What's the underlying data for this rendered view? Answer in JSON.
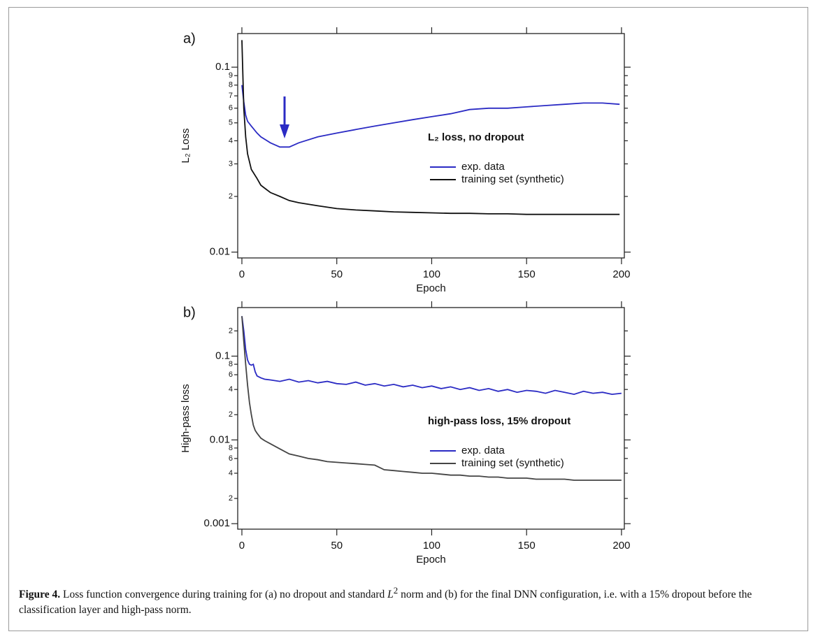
{
  "chart_data": [
    {
      "type": "line",
      "panel_label": "a)",
      "ylabel": "L₂ Loss",
      "xlabel": "Epoch",
      "annotation": "L₂ loss, no dropout",
      "ylog": true,
      "xlim": [
        -2.2,
        201.5
      ],
      "ylim": [
        0.0093,
        0.152
      ],
      "xticks": [
        0,
        50,
        100,
        150,
        200
      ],
      "yticks": [
        0.01,
        {
          "value": 0.02,
          "label": "2"
        },
        {
          "value": 0.03,
          "label": "3"
        },
        {
          "value": 0.04,
          "label": "4"
        },
        {
          "value": 0.05,
          "label": "5"
        },
        {
          "value": 0.06,
          "label": "6"
        },
        {
          "value": 0.07,
          "label": "7"
        },
        {
          "value": 0.08,
          "label": "8"
        },
        {
          "value": 0.09,
          "label": "9"
        },
        0.1
      ],
      "x": [
        0,
        1,
        2,
        3,
        5,
        8,
        10,
        15,
        20,
        25,
        30,
        40,
        50,
        60,
        70,
        80,
        90,
        100,
        110,
        120,
        130,
        140,
        150,
        160,
        170,
        180,
        190,
        199
      ],
      "series": [
        {
          "name": "exp. data",
          "color": "#2b2bc4",
          "values": [
            0.08,
            0.065,
            0.055,
            0.051,
            0.048,
            0.044,
            0.042,
            0.039,
            0.037,
            0.037,
            0.039,
            0.042,
            0.044,
            0.046,
            0.048,
            0.05,
            0.052,
            0.054,
            0.056,
            0.059,
            0.06,
            0.06,
            0.061,
            0.062,
            0.063,
            0.064,
            0.064,
            0.063
          ]
        },
        {
          "name": "training set (synthetic)",
          "color": "#111111",
          "values": [
            0.14,
            0.06,
            0.042,
            0.034,
            0.028,
            0.025,
            0.023,
            0.021,
            0.02,
            0.019,
            0.0185,
            0.0178,
            0.0172,
            0.0169,
            0.0167,
            0.0165,
            0.0164,
            0.0163,
            0.0162,
            0.0162,
            0.0161,
            0.0161,
            0.016,
            0.016,
            0.016,
            0.016,
            0.016,
            0.016
          ]
        }
      ]
    },
    {
      "type": "line",
      "panel_label": "b)",
      "ylabel": "High-pass loss",
      "xlabel": "Epoch",
      "annotation": "high-pass loss, 15% dropout",
      "ylog": true,
      "xlim": [
        -2.2,
        201.5
      ],
      "ylim": [
        0.00086,
        0.38
      ],
      "xticks": [
        0,
        50,
        100,
        150,
        200
      ],
      "yticks": [
        0.001,
        {
          "value": 0.002,
          "label": "2"
        },
        {
          "value": 0.004,
          "label": "4"
        },
        {
          "value": 0.006,
          "label": "6"
        },
        {
          "value": 0.008,
          "label": "8"
        },
        0.01,
        {
          "value": 0.02,
          "label": "2"
        },
        {
          "value": 0.04,
          "label": "4"
        },
        {
          "value": 0.06,
          "label": "6"
        },
        {
          "value": 0.08,
          "label": "8"
        },
        0.1,
        {
          "value": 0.2,
          "label": "2"
        }
      ],
      "x": [
        0,
        1,
        2,
        3,
        4,
        5,
        6,
        7,
        8,
        10,
        12,
        15,
        20,
        25,
        30,
        35,
        40,
        45,
        50,
        55,
        60,
        65,
        70,
        75,
        80,
        85,
        90,
        95,
        100,
        105,
        110,
        115,
        120,
        125,
        130,
        135,
        140,
        145,
        150,
        155,
        160,
        165,
        170,
        175,
        180,
        185,
        190,
        195,
        200
      ],
      "series": [
        {
          "name": "exp. data",
          "color": "#2b2bc4",
          "values": [
            0.3,
            0.2,
            0.12,
            0.09,
            0.08,
            0.078,
            0.08,
            0.065,
            0.058,
            0.055,
            0.053,
            0.052,
            0.05,
            0.053,
            0.049,
            0.051,
            0.048,
            0.05,
            0.047,
            0.046,
            0.049,
            0.045,
            0.047,
            0.044,
            0.046,
            0.043,
            0.045,
            0.042,
            0.044,
            0.041,
            0.043,
            0.04,
            0.042,
            0.039,
            0.041,
            0.038,
            0.04,
            0.037,
            0.039,
            0.038,
            0.036,
            0.039,
            0.037,
            0.035,
            0.038,
            0.036,
            0.037,
            0.035,
            0.036
          ]
        },
        {
          "name": "training set (synthetic)",
          "color": "#444444",
          "values": [
            0.3,
            0.15,
            0.08,
            0.045,
            0.028,
            0.02,
            0.015,
            0.013,
            0.012,
            0.0105,
            0.0098,
            0.009,
            0.0078,
            0.0068,
            0.0064,
            0.006,
            0.0058,
            0.0055,
            0.0054,
            0.0053,
            0.0052,
            0.0051,
            0.005,
            0.0044,
            0.0043,
            0.0042,
            0.0041,
            0.004,
            0.004,
            0.0039,
            0.0038,
            0.0038,
            0.0037,
            0.0037,
            0.0036,
            0.0036,
            0.0035,
            0.0035,
            0.0035,
            0.0034,
            0.0034,
            0.0034,
            0.0034,
            0.0033,
            0.0033,
            0.0033,
            0.0033,
            0.0033,
            0.0033
          ]
        }
      ]
    }
  ],
  "caption": {
    "label": "Figure 4.",
    "before": " Loss function convergence during training for (a) no dropout and standard ",
    "symbol": "L",
    "sup": "2",
    "after": " norm and (b) for the final DNN configuration, i.e. with a 15% dropout before the classification layer and high-pass norm."
  }
}
